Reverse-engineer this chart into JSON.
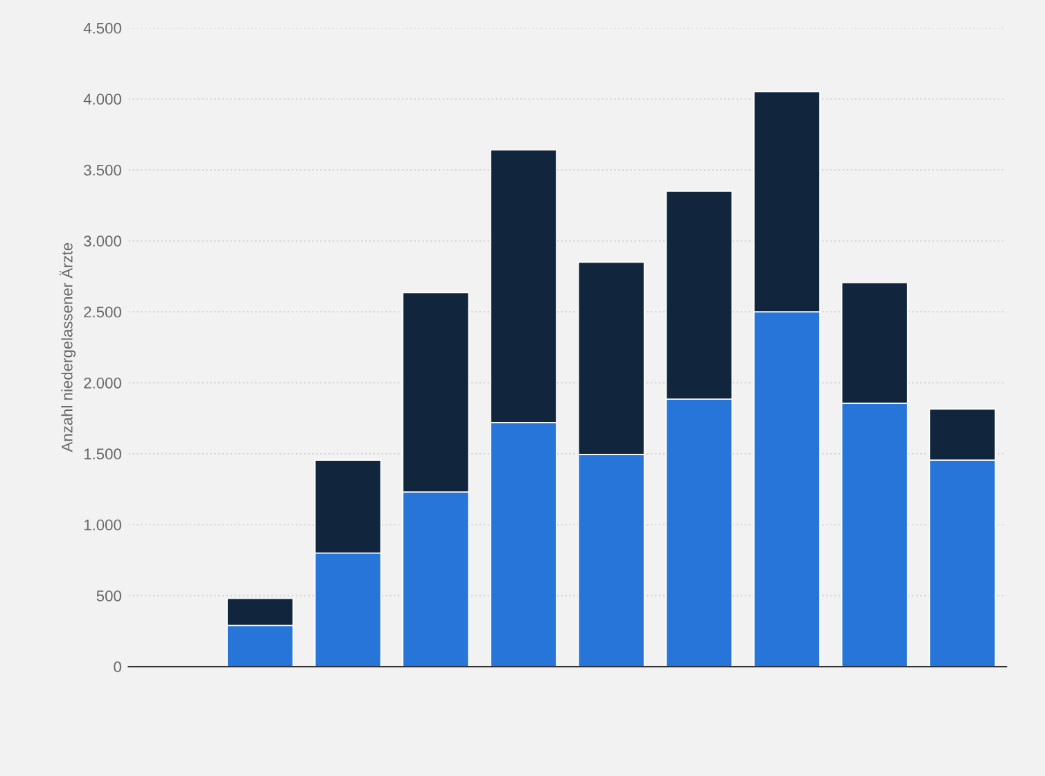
{
  "chart_data": {
    "type": "bar",
    "stacked": true,
    "ylabel": "Anzahl niedergelassener Ärzte",
    "categories": [
      null,
      null,
      null,
      null,
      null,
      null,
      null,
      null,
      null,
      null
    ],
    "series": [
      {
        "color": "#2775d9",
        "values": [
          null,
          290,
          800,
          1230,
          1720,
          1495,
          1885,
          2500,
          1855,
          1455
        ]
      },
      {
        "color": "#11263d",
        "values": [
          null,
          190,
          655,
          1405,
          1920,
          1355,
          1465,
          1550,
          850,
          360
        ]
      }
    ],
    "ylim": [
      0,
      4500
    ],
    "yticks": [
      {
        "value": 0,
        "label": "0"
      },
      {
        "value": 500,
        "label": "500"
      },
      {
        "value": 1000,
        "label": "1.000"
      },
      {
        "value": 1500,
        "label": "1.500"
      },
      {
        "value": 2000,
        "label": "2.000"
      },
      {
        "value": 2500,
        "label": "2.500"
      },
      {
        "value": 3000,
        "label": "3.000"
      },
      {
        "value": 3500,
        "label": "3.500"
      },
      {
        "value": 4000,
        "label": "4.000"
      },
      {
        "value": 4500,
        "label": "4.500"
      }
    ],
    "grid": "y"
  }
}
